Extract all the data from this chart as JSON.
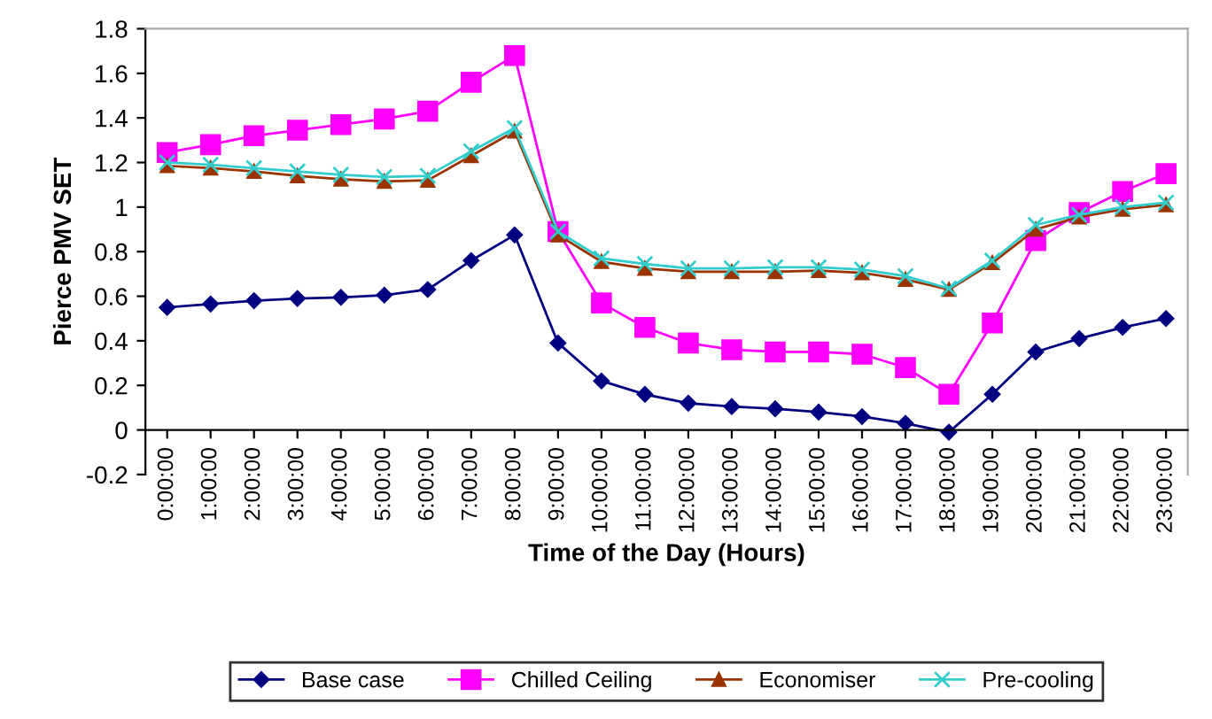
{
  "chart_data": {
    "type": "line",
    "xlabel": "Time of the Day (Hours)",
    "ylabel": "Pierce PMV SET",
    "categories": [
      "0:00:00",
      "1:00:00",
      "2:00:00",
      "3:00:00",
      "4:00:00",
      "5:00:00",
      "6:00:00",
      "7:00:00",
      "8:00:00",
      "9:00:00",
      "10:00:00",
      "11:00:00",
      "12:00:00",
      "13:00:00",
      "14:00:00",
      "15:00:00",
      "16:00:00",
      "17:00:00",
      "18:00:00",
      "19:00:00",
      "20:00:00",
      "21:00:00",
      "22:00:00",
      "23:00:00"
    ],
    "series": [
      {
        "name": "Base case",
        "color": "#000080",
        "marker": "diamond",
        "values": [
          0.55,
          0.565,
          0.58,
          0.59,
          0.595,
          0.605,
          0.63,
          0.76,
          0.875,
          0.39,
          0.22,
          0.16,
          0.12,
          0.105,
          0.095,
          0.08,
          0.06,
          0.03,
          -0.01,
          0.16,
          0.35,
          0.41,
          0.46,
          0.5
        ]
      },
      {
        "name": "Chilled Ceiling",
        "color": "#ff00ff",
        "marker": "square",
        "values": [
          1.245,
          1.28,
          1.32,
          1.345,
          1.37,
          1.395,
          1.43,
          1.56,
          1.68,
          0.89,
          0.57,
          0.46,
          0.39,
          0.36,
          0.35,
          0.35,
          0.34,
          0.28,
          0.16,
          0.48,
          0.85,
          0.975,
          1.07,
          1.15
        ]
      },
      {
        "name": "Economiser",
        "color": "#993300",
        "marker": "triangle",
        "values": [
          1.185,
          1.175,
          1.16,
          1.14,
          1.125,
          1.115,
          1.12,
          1.23,
          1.34,
          0.875,
          0.755,
          0.725,
          0.71,
          0.71,
          0.71,
          0.715,
          0.705,
          0.675,
          0.63,
          0.75,
          0.9,
          0.955,
          0.99,
          1.01
        ]
      },
      {
        "name": "Pre-cooling",
        "color": "#33cccc",
        "marker": "cross",
        "values": [
          1.2,
          1.19,
          1.175,
          1.16,
          1.145,
          1.135,
          1.14,
          1.25,
          1.355,
          0.89,
          0.77,
          0.745,
          0.725,
          0.725,
          0.73,
          0.73,
          0.72,
          0.69,
          0.635,
          0.76,
          0.92,
          0.965,
          1.0,
          1.02
        ]
      }
    ],
    "ylim": [
      -0.2,
      1.8
    ],
    "yticks": [
      -0.2,
      0,
      0.2,
      0.4,
      0.6,
      0.8,
      1,
      1.2,
      1.4,
      1.6,
      1.8
    ],
    "grid": false,
    "legend": "bottom"
  }
}
